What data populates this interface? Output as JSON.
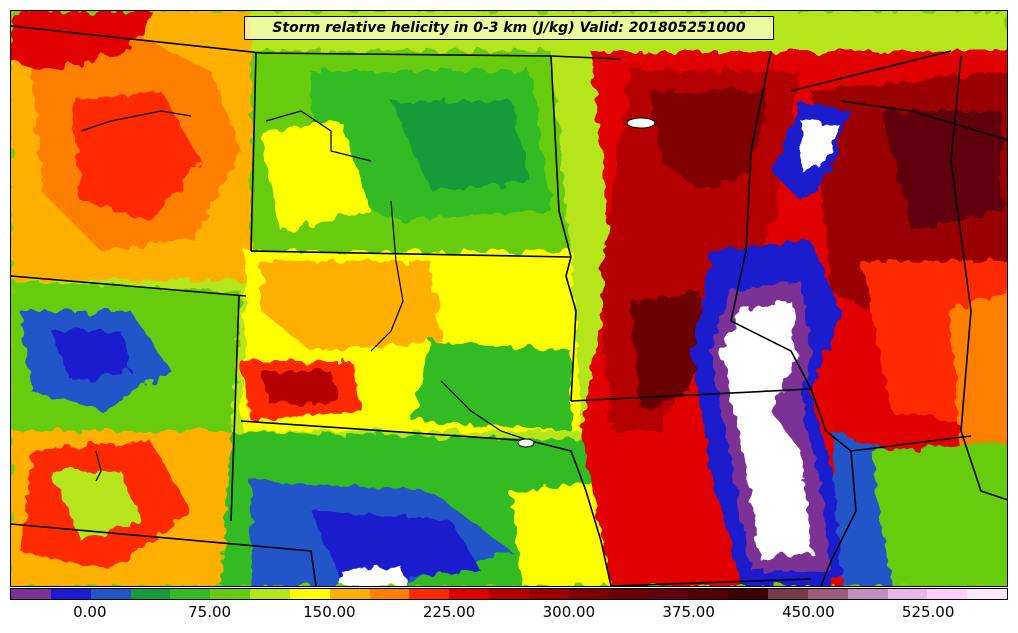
{
  "map": {
    "title": "Storm relative helicity in 0-3 km (J/kg) Valid: 201805251000",
    "variable": "Storm relative helicity 0-3 km",
    "units": "J/kg",
    "valid_time": "201805251000"
  },
  "colorbar": {
    "colors": [
      "#7b3294",
      "#1c1ccf",
      "#2255c8",
      "#169b3a",
      "#33bb22",
      "#66cc11",
      "#b5e61d",
      "#ffff00",
      "#ffb000",
      "#ff7f00",
      "#ff2a00",
      "#e00000",
      "#b50000",
      "#9a0000",
      "#800000",
      "#6a0000",
      "#600010",
      "#500000",
      "#3c0000",
      "#7b3a4a",
      "#a05a7a",
      "#c090c0",
      "#e8b8e8",
      "#ffd0ff",
      "#ffe8ff"
    ],
    "tick_labels": [
      "0.00",
      "75.00",
      "150.00",
      "225.00",
      "300.00",
      "375.00",
      "450.00",
      "525.00"
    ],
    "tick_values": [
      0,
      75,
      150,
      225,
      300,
      375,
      450,
      525
    ],
    "min": -50,
    "max": 575
  },
  "palette": {
    "frame": "#000000",
    "title_bg": "#ffffc8",
    "water": "#ffffff"
  }
}
